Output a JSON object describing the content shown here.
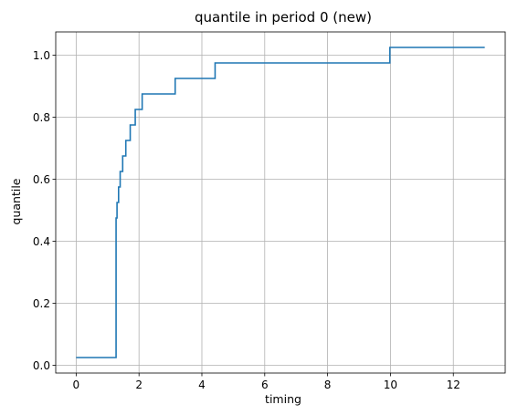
{
  "chart_data": {
    "type": "line",
    "title": "quantile in period 0 (new)",
    "xlabel": "timing",
    "ylabel": "quantile",
    "xlim": [
      -0.65,
      13.65
    ],
    "ylim": [
      -0.025,
      1.075
    ],
    "xticks": [
      0,
      2,
      4,
      6,
      8,
      10,
      12
    ],
    "yticks": [
      0.0,
      0.2,
      0.4,
      0.6,
      0.8,
      1.0
    ],
    "xtick_labels": [
      "0",
      "2",
      "4",
      "6",
      "8",
      "10",
      "12"
    ],
    "ytick_labels": [
      "0.0",
      "0.2",
      "0.4",
      "0.6",
      "0.8",
      "1.0"
    ],
    "grid": true,
    "line_color": "#1f77b4",
    "drawstyle": "steps-post",
    "series": [
      {
        "x": [
          0,
          1.27,
          1.3,
          1.35,
          1.4,
          1.48,
          1.58,
          1.72,
          1.88,
          2.1,
          2.52,
          3.15,
          4.42,
          9.98,
          13.0
        ],
        "y": [
          0.025,
          0.475,
          0.525,
          0.575,
          0.625,
          0.675,
          0.725,
          0.775,
          0.825,
          0.875,
          0.875,
          0.925,
          0.975,
          1.025,
          1.025
        ]
      }
    ]
  }
}
